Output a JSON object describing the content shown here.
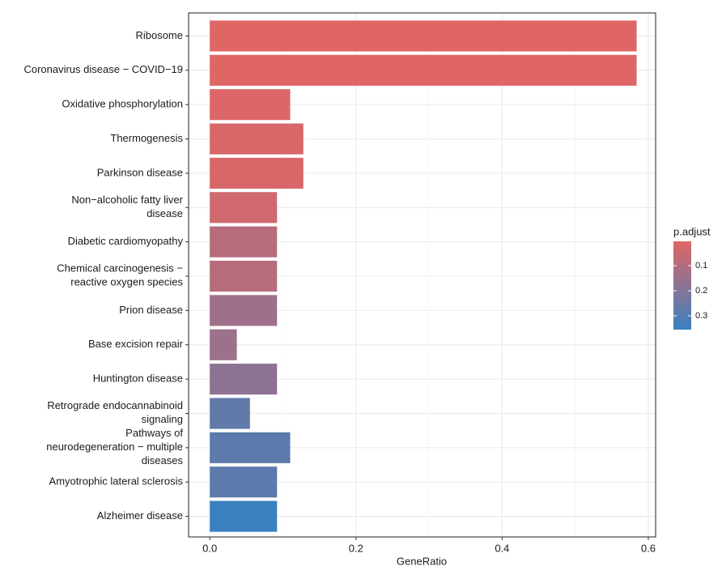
{
  "chart_data": {
    "type": "barh",
    "categories": [
      "Ribosome",
      "Coronavirus disease − COVID−19",
      "Oxidative phosphorylation",
      "Thermogenesis",
      "Parkinson disease",
      "Non−alcoholic fatty liver\ndisease",
      "Diabetic cardiomyopathy",
      "Chemical carcinogenesis −\nreactive oxygen species",
      "Prion disease",
      "Base excision repair",
      "Huntington disease",
      "Retrograde endocannabinoid\nsignaling",
      "Pathways of\nneurodegeneration − multiple\ndiseases",
      "Amyotrophic lateral sclerosis",
      "Alzheimer disease"
    ],
    "values": [
      0.584,
      0.584,
      0.11,
      0.128,
      0.128,
      0.092,
      0.092,
      0.092,
      0.092,
      0.037,
      0.092,
      0.055,
      0.11,
      0.092,
      0.092
    ],
    "p_adjust": [
      0.003,
      0.003,
      0.01,
      0.02,
      0.02,
      0.04,
      0.09,
      0.09,
      0.14,
      0.15,
      0.18,
      0.27,
      0.28,
      0.28,
      0.355
    ],
    "xlabel": "GeneRatio",
    "xlim": [
      -0.029,
      0.61
    ],
    "xticks": [
      {
        "value": 0,
        "label": "0.0"
      },
      0.2,
      0.4,
      0.6
    ],
    "grid": true,
    "legend_title": "p.adjust",
    "color_lim": [
      0.003,
      0.355
    ],
    "color_ticks": [
      0.1,
      0.2,
      0.3
    ],
    "color_low": "#e06666",
    "color_high": "#3a80bf"
  }
}
